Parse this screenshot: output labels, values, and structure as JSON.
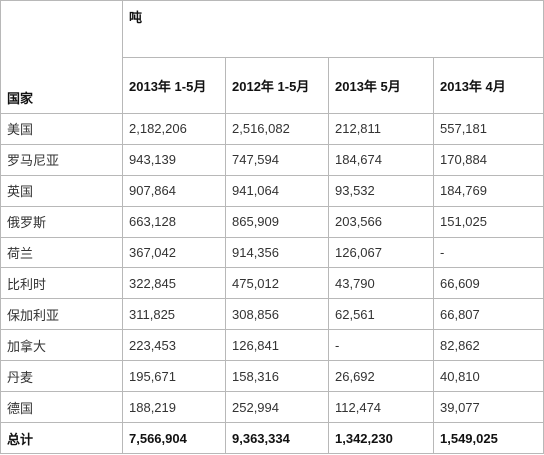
{
  "header": {
    "unit": "吨",
    "country": "国家",
    "columns": [
      "2013年 1-5月",
      "2012年 1-5月",
      "2013年 5月",
      "2013年 4月"
    ]
  },
  "table": {
    "rows": [
      [
        "美国",
        "2,182,206",
        "2,516,082",
        "212,811",
        "557,181"
      ],
      [
        "罗马尼亚",
        "943,139",
        "747,594",
        "184,674",
        "170,884"
      ],
      [
        "英国",
        "907,864",
        "941,064",
        "93,532",
        "184,769"
      ],
      [
        "俄罗斯",
        "663,128",
        "865,909",
        "203,566",
        "151,025"
      ],
      [
        "荷兰",
        "367,042",
        "914,356",
        "126,067",
        "-"
      ],
      [
        "比利时",
        "322,845",
        "475,012",
        "43,790",
        "66,609"
      ],
      [
        "保加利亚",
        "311,825",
        "308,856",
        "62,561",
        "66,807"
      ],
      [
        "加拿大",
        "223,453",
        "126,841",
        "-",
        "82,862"
      ],
      [
        "丹麦",
        "195,671",
        "158,316",
        "26,692",
        "40,810"
      ],
      [
        "德国",
        "188,219",
        "252,994",
        "112,474",
        "39,077"
      ]
    ],
    "total": [
      "总计",
      "7,566,904",
      "9,363,334",
      "1,342,230",
      "1,549,025"
    ]
  }
}
